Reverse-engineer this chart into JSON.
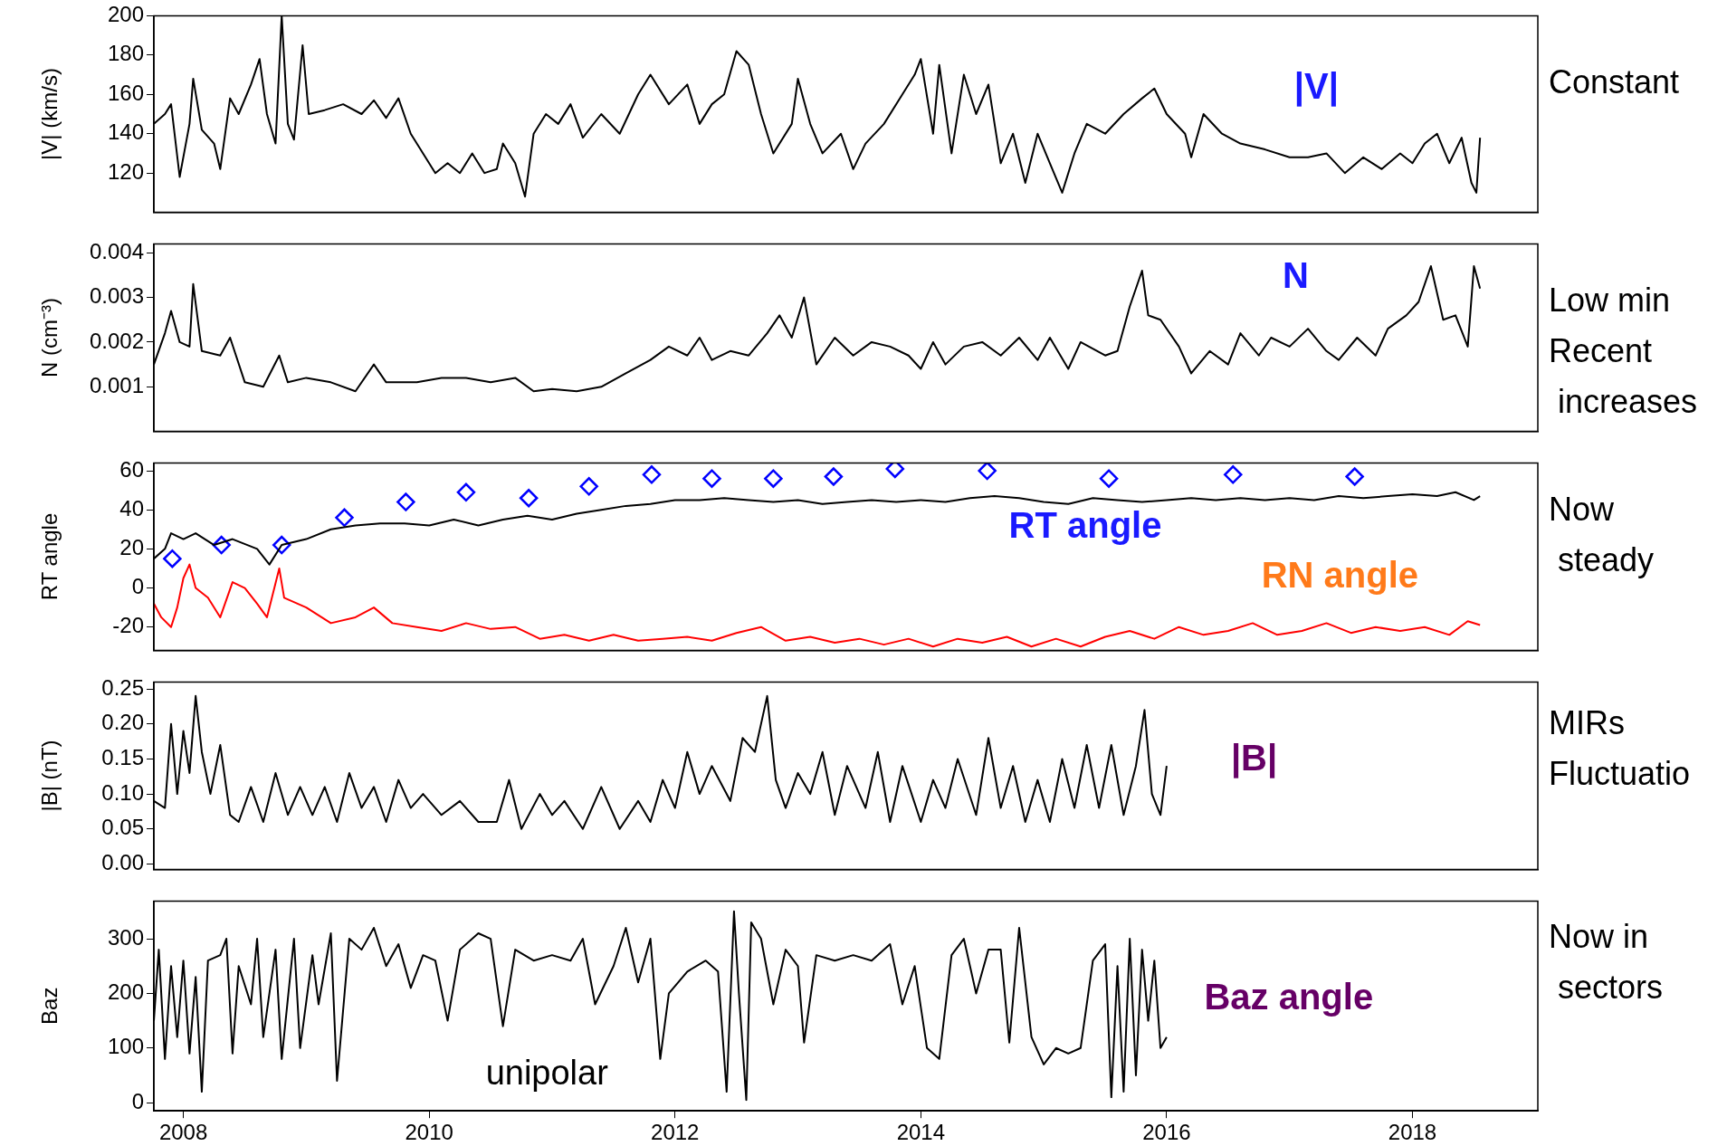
{
  "chart_data": [
    {
      "type": "line",
      "ylabel": "|V| (km/s)",
      "xlim": [
        2007.76,
        2019.02
      ],
      "ylim": [
        100,
        200
      ],
      "yticks": [
        120,
        140,
        160,
        180,
        200
      ],
      "tick_labels": "y",
      "grid": false,
      "legend": false,
      "marker": "none",
      "annotations": [
        "|V|",
        "Constant"
      ],
      "series": [
        {
          "color": "#000000",
          "x": [
            2007.76,
            2007.85,
            2007.9,
            2007.97,
            2008.05,
            2008.08,
            2008.15,
            2008.25,
            2008.3,
            2008.38,
            2008.45,
            2008.55,
            2008.62,
            2008.68,
            2008.75,
            2008.8,
            2008.85,
            2008.9,
            2008.97,
            2009.02,
            2009.15,
            2009.3,
            2009.45,
            2009.55,
            2009.65,
            2009.75,
            2009.85,
            2009.95,
            2010.05,
            2010.15,
            2010.25,
            2010.35,
            2010.45,
            2010.55,
            2010.6,
            2010.7,
            2010.78,
            2010.85,
            2010.95,
            2011.05,
            2011.15,
            2011.25,
            2011.4,
            2011.55,
            2011.7,
            2011.8,
            2011.95,
            2012.1,
            2012.2,
            2012.3,
            2012.4,
            2012.5,
            2012.6,
            2012.7,
            2012.8,
            2012.95,
            2013.0,
            2013.1,
            2013.2,
            2013.35,
            2013.45,
            2013.55,
            2013.7,
            2013.85,
            2013.95,
            2014.0,
            2014.1,
            2014.15,
            2014.25,
            2014.35,
            2014.45,
            2014.55,
            2014.65,
            2014.75,
            2014.85,
            2014.95,
            2015.05,
            2015.15,
            2015.25,
            2015.35,
            2015.5,
            2015.65,
            2015.8,
            2015.9,
            2016.0,
            2016.15,
            2016.2,
            2016.3,
            2016.45,
            2016.6,
            2016.8,
            2017.0,
            2017.15,
            2017.3,
            2017.45,
            2017.6,
            2017.75,
            2017.9,
            2018.0,
            2018.1,
            2018.2,
            2018.3,
            2018.4,
            2018.48,
            2018.52,
            2018.55
          ],
          "values": [
            145,
            150,
            155,
            118,
            145,
            168,
            142,
            135,
            122,
            158,
            150,
            165,
            178,
            150,
            135,
            200,
            145,
            137,
            185,
            150,
            152,
            155,
            150,
            157,
            148,
            158,
            140,
            130,
            120,
            125,
            120,
            130,
            120,
            122,
            135,
            125,
            108,
            140,
            150,
            145,
            155,
            138,
            150,
            140,
            160,
            170,
            155,
            165,
            145,
            155,
            160,
            182,
            175,
            150,
            130,
            145,
            168,
            145,
            130,
            140,
            122,
            135,
            145,
            160,
            170,
            178,
            140,
            175,
            130,
            170,
            150,
            165,
            125,
            140,
            115,
            140,
            125,
            110,
            130,
            145,
            140,
            150,
            158,
            163,
            150,
            140,
            128,
            150,
            140,
            135,
            132,
            128,
            128,
            130,
            120,
            128,
            122,
            130,
            125,
            135,
            140,
            125,
            138,
            115,
            110,
            138
          ]
        }
      ]
    },
    {
      "type": "line",
      "ylabel": "N (cm⁻³)",
      "xlim": [
        2007.76,
        2019.02
      ],
      "ylim": [
        0,
        0.0042
      ],
      "yticks": [
        0.001,
        0.002,
        0.003,
        0.004
      ],
      "tick_labels": "y",
      "grid": false,
      "legend": false,
      "marker": "none",
      "annotations": [
        "N",
        "Low min\nRecent\n increases"
      ],
      "series": [
        {
          "color": "#000000",
          "x": [
            2007.76,
            2007.85,
            2007.9,
            2007.97,
            2008.05,
            2008.08,
            2008.15,
            2008.3,
            2008.38,
            2008.5,
            2008.65,
            2008.78,
            2008.85,
            2009.0,
            2009.2,
            2009.4,
            2009.55,
            2009.65,
            2009.9,
            2010.1,
            2010.3,
            2010.5,
            2010.7,
            2010.85,
            2011.0,
            2011.2,
            2011.4,
            2011.6,
            2011.8,
            2011.95,
            2012.1,
            2012.2,
            2012.3,
            2012.45,
            2012.6,
            2012.75,
            2012.85,
            2012.95,
            2013.05,
            2013.15,
            2013.3,
            2013.45,
            2013.6,
            2013.75,
            2013.9,
            2014.0,
            2014.1,
            2014.2,
            2014.35,
            2014.5,
            2014.65,
            2014.8,
            2014.95,
            2015.05,
            2015.2,
            2015.3,
            2015.5,
            2015.6,
            2015.7,
            2015.8,
            2015.85,
            2015.95,
            2016.1,
            2016.2,
            2016.35,
            2016.5,
            2016.6,
            2016.75,
            2016.85,
            2017.0,
            2017.15,
            2017.3,
            2017.4,
            2017.55,
            2017.7,
            2017.8,
            2017.95,
            2018.05,
            2018.15,
            2018.25,
            2018.35,
            2018.45,
            2018.5,
            2018.55
          ],
          "values": [
            0.0015,
            0.0022,
            0.0027,
            0.002,
            0.0019,
            0.0033,
            0.0018,
            0.0017,
            0.0021,
            0.0011,
            0.001,
            0.0017,
            0.0011,
            0.0012,
            0.0011,
            0.0009,
            0.0015,
            0.0011,
            0.0011,
            0.0012,
            0.0012,
            0.0011,
            0.0012,
            0.0009,
            0.00095,
            0.0009,
            0.001,
            0.0013,
            0.0016,
            0.0019,
            0.0017,
            0.0021,
            0.0016,
            0.0018,
            0.0017,
            0.0022,
            0.0026,
            0.0021,
            0.003,
            0.0015,
            0.0021,
            0.0017,
            0.002,
            0.0019,
            0.0017,
            0.0014,
            0.002,
            0.0015,
            0.0019,
            0.002,
            0.0017,
            0.0021,
            0.0016,
            0.0021,
            0.0014,
            0.002,
            0.0017,
            0.0018,
            0.0028,
            0.0036,
            0.0026,
            0.0025,
            0.0019,
            0.0013,
            0.0018,
            0.0015,
            0.0022,
            0.0017,
            0.0021,
            0.0019,
            0.0023,
            0.0018,
            0.0016,
            0.0021,
            0.0017,
            0.0023,
            0.0026,
            0.0029,
            0.0037,
            0.0025,
            0.0026,
            0.0019,
            0.0037,
            0.0032
          ]
        }
      ]
    },
    {
      "type": "line",
      "ylabel": "RT angle",
      "xlim": [
        2007.76,
        2019.02
      ],
      "ylim": [
        -32,
        64
      ],
      "yticks": [
        -20,
        0,
        20,
        40,
        60
      ],
      "tick_labels": "y",
      "grid": false,
      "legend": false,
      "marker": "none",
      "annotations": [
        "RT angle",
        "RN angle",
        "Now\n steady"
      ],
      "series": [
        {
          "color": "#000000",
          "x": [
            2007.76,
            2007.85,
            2007.9,
            2008.0,
            2008.1,
            2008.25,
            2008.4,
            2008.6,
            2008.7,
            2008.8,
            2009.0,
            2009.2,
            2009.4,
            2009.6,
            2009.8,
            2010.0,
            2010.2,
            2010.4,
            2010.6,
            2010.8,
            2011.0,
            2011.2,
            2011.4,
            2011.6,
            2011.8,
            2012.0,
            2012.2,
            2012.4,
            2012.6,
            2012.8,
            2013.0,
            2013.2,
            2013.4,
            2013.6,
            2013.8,
            2014.0,
            2014.2,
            2014.4,
            2014.6,
            2014.8,
            2015.0,
            2015.2,
            2015.4,
            2015.6,
            2015.8,
            2016.0,
            2016.2,
            2016.4,
            2016.6,
            2016.8,
            2017.0,
            2017.2,
            2017.4,
            2017.6,
            2017.8,
            2018.0,
            2018.2,
            2018.35,
            2018.5,
            2018.55
          ],
          "values": [
            15,
            20,
            28,
            25,
            28,
            22,
            25,
            20,
            12,
            22,
            25,
            30,
            32,
            33,
            33,
            32,
            35,
            32,
            35,
            37,
            35,
            38,
            40,
            42,
            43,
            45,
            45,
            46,
            45,
            44,
            45,
            43,
            44,
            45,
            44,
            45,
            44,
            46,
            47,
            46,
            44,
            43,
            46,
            45,
            44,
            45,
            46,
            45,
            46,
            45,
            46,
            45,
            47,
            46,
            47,
            48,
            47,
            49,
            45,
            47
          ]
        },
        {
          "type": "scatter",
          "color": "#0000ff",
          "marker": "diamond",
          "x": [
            2007.91,
            2008.31,
            2008.8,
            2009.31,
            2009.81,
            2010.3,
            2010.81,
            2011.3,
            2011.81,
            2012.3,
            2012.8,
            2013.29,
            2013.79,
            2014.54,
            2015.53,
            2016.54,
            2017.53
          ],
          "values": [
            15,
            22,
            22,
            36,
            44,
            49,
            46,
            52,
            58,
            56,
            56,
            57,
            61,
            60,
            56,
            58,
            57
          ]
        },
        {
          "color": "#ff0000",
          "x": [
            2007.76,
            2007.82,
            2007.9,
            2007.95,
            2008.0,
            2008.05,
            2008.1,
            2008.2,
            2008.3,
            2008.4,
            2008.5,
            2008.6,
            2008.68,
            2008.78,
            2008.82,
            2009.0,
            2009.2,
            2009.4,
            2009.55,
            2009.7,
            2009.9,
            2010.1,
            2010.3,
            2010.5,
            2010.7,
            2010.9,
            2011.1,
            2011.3,
            2011.5,
            2011.7,
            2011.9,
            2012.1,
            2012.3,
            2012.5,
            2012.7,
            2012.9,
            2013.1,
            2013.3,
            2013.5,
            2013.7,
            2013.9,
            2014.1,
            2014.3,
            2014.5,
            2014.7,
            2014.9,
            2015.1,
            2015.3,
            2015.5,
            2015.7,
            2015.9,
            2016.1,
            2016.3,
            2016.5,
            2016.7,
            2016.9,
            2017.1,
            2017.3,
            2017.5,
            2017.7,
            2017.9,
            2018.1,
            2018.3,
            2018.45,
            2018.55
          ],
          "values": [
            -8,
            -15,
            -20,
            -10,
            5,
            12,
            0,
            -5,
            -15,
            3,
            0,
            -8,
            -15,
            10,
            -5,
            -10,
            -18,
            -15,
            -10,
            -18,
            -20,
            -22,
            -18,
            -21,
            -20,
            -26,
            -24,
            -27,
            -24,
            -27,
            -26,
            -25,
            -27,
            -23,
            -20,
            -27,
            -25,
            -28,
            -26,
            -29,
            -26,
            -30,
            -26,
            -28,
            -25,
            -30,
            -26,
            -30,
            -25,
            -22,
            -26,
            -20,
            -24,
            -22,
            -18,
            -24,
            -22,
            -18,
            -23,
            -20,
            -22,
            -20,
            -24,
            -17,
            -19
          ]
        }
      ]
    },
    {
      "type": "line",
      "ylabel": "|B| (nT)",
      "xlim": [
        2007.76,
        2019.02
      ],
      "ylim": [
        -0.008,
        0.26
      ],
      "yticks": [
        {
          "value": 0,
          "label": "0.00"
        },
        {
          "value": 0.05,
          "label": "0.05"
        },
        {
          "value": 0.1,
          "label": "0.10"
        },
        {
          "value": 0.15,
          "label": "0.15"
        },
        {
          "value": 0.2,
          "label": "0.20"
        },
        {
          "value": 0.25,
          "label": "0.25"
        }
      ],
      "tick_labels": "y",
      "grid": false,
      "legend": false,
      "marker": "none",
      "annotations": [
        "|B|",
        "MIRs\nFluctuatio"
      ],
      "series": [
        {
          "color": "#000000",
          "x": [
            2007.76,
            2007.85,
            2007.9,
            2007.95,
            2008.0,
            2008.05,
            2008.1,
            2008.15,
            2008.22,
            2008.3,
            2008.38,
            2008.45,
            2008.55,
            2008.65,
            2008.75,
            2008.85,
            2008.95,
            2009.05,
            2009.15,
            2009.25,
            2009.35,
            2009.45,
            2009.55,
            2009.65,
            2009.75,
            2009.85,
            2009.95,
            2010.1,
            2010.25,
            2010.4,
            2010.55,
            2010.65,
            2010.75,
            2010.9,
            2011.0,
            2011.1,
            2011.25,
            2011.4,
            2011.55,
            2011.7,
            2011.8,
            2011.9,
            2012.0,
            2012.1,
            2012.2,
            2012.3,
            2012.45,
            2012.55,
            2012.65,
            2012.75,
            2012.82,
            2012.9,
            2013.0,
            2013.1,
            2013.2,
            2013.3,
            2013.4,
            2013.55,
            2013.65,
            2013.75,
            2013.85,
            2014.0,
            2014.1,
            2014.2,
            2014.3,
            2014.45,
            2014.55,
            2014.65,
            2014.75,
            2014.85,
            2014.95,
            2015.05,
            2015.15,
            2015.25,
            2015.35,
            2015.45,
            2015.55,
            2015.65,
            2015.75,
            2015.82,
            2015.88,
            2015.95,
            2016.0
          ],
          "values": [
            0.09,
            0.08,
            0.2,
            0.1,
            0.19,
            0.13,
            0.24,
            0.16,
            0.1,
            0.17,
            0.07,
            0.06,
            0.11,
            0.06,
            0.13,
            0.07,
            0.11,
            0.07,
            0.11,
            0.06,
            0.13,
            0.08,
            0.11,
            0.06,
            0.12,
            0.08,
            0.1,
            0.07,
            0.09,
            0.06,
            0.06,
            0.12,
            0.05,
            0.1,
            0.07,
            0.09,
            0.05,
            0.11,
            0.05,
            0.09,
            0.06,
            0.12,
            0.08,
            0.16,
            0.1,
            0.14,
            0.09,
            0.18,
            0.16,
            0.24,
            0.12,
            0.08,
            0.13,
            0.1,
            0.16,
            0.07,
            0.14,
            0.08,
            0.16,
            0.06,
            0.14,
            0.06,
            0.12,
            0.08,
            0.15,
            0.07,
            0.18,
            0.08,
            0.14,
            0.06,
            0.12,
            0.06,
            0.15,
            0.08,
            0.17,
            0.08,
            0.17,
            0.07,
            0.14,
            0.22,
            0.1,
            0.07,
            0.14
          ]
        }
      ]
    },
    {
      "type": "line",
      "ylabel": "Baz",
      "xlim": [
        2007.76,
        2019.02
      ],
      "ylim": [
        -15,
        369
      ],
      "yticks": [
        0,
        100,
        200,
        300
      ],
      "xticks": [
        2008,
        2010,
        2012,
        2014,
        2016,
        2018
      ],
      "grid": false,
      "legend": false,
      "marker": "none",
      "annotations": [
        "Baz angle",
        "unipolar",
        "Now in\n sectors"
      ],
      "series": [
        {
          "color": "#000000",
          "x": [
            2007.76,
            2007.8,
            2007.85,
            2007.9,
            2007.95,
            2008.0,
            2008.05,
            2008.1,
            2008.15,
            2008.2,
            2008.3,
            2008.35,
            2008.4,
            2008.45,
            2008.55,
            2008.6,
            2008.65,
            2008.75,
            2008.8,
            2008.9,
            2008.95,
            2009.05,
            2009.1,
            2009.2,
            2009.25,
            2009.35,
            2009.45,
            2009.55,
            2009.65,
            2009.75,
            2009.85,
            2009.95,
            2010.05,
            2010.15,
            2010.25,
            2010.4,
            2010.5,
            2010.6,
            2010.7,
            2010.85,
            2011.0,
            2011.15,
            2011.25,
            2011.35,
            2011.5,
            2011.6,
            2011.7,
            2011.8,
            2011.88,
            2011.95,
            2012.1,
            2012.25,
            2012.35,
            2012.42,
            2012.48,
            2012.52,
            2012.58,
            2012.62,
            2012.7,
            2012.8,
            2012.9,
            2013.0,
            2013.05,
            2013.15,
            2013.3,
            2013.45,
            2013.6,
            2013.75,
            2013.85,
            2013.95,
            2014.05,
            2014.15,
            2014.25,
            2014.35,
            2014.45,
            2014.55,
            2014.65,
            2014.72,
            2014.8,
            2014.9,
            2015.0,
            2015.1,
            2015.2,
            2015.3,
            2015.4,
            2015.5,
            2015.55,
            2015.6,
            2015.65,
            2015.7,
            2015.75,
            2015.8,
            2015.85,
            2015.9,
            2015.95,
            2016.0
          ],
          "values": [
            150,
            280,
            80,
            250,
            120,
            260,
            90,
            230,
            20,
            260,
            270,
            300,
            90,
            250,
            180,
            300,
            120,
            280,
            80,
            300,
            100,
            270,
            180,
            310,
            40,
            300,
            280,
            320,
            250,
            290,
            210,
            270,
            260,
            150,
            280,
            310,
            300,
            140,
            280,
            260,
            270,
            260,
            300,
            180,
            250,
            320,
            220,
            300,
            80,
            200,
            240,
            260,
            240,
            20,
            350,
            200,
            5,
            330,
            300,
            180,
            280,
            250,
            110,
            270,
            260,
            270,
            260,
            290,
            180,
            250,
            100,
            80,
            270,
            300,
            200,
            280,
            280,
            110,
            320,
            120,
            70,
            100,
            90,
            100,
            260,
            290,
            10,
            250,
            20,
            300,
            50,
            280,
            150,
            260,
            100,
            120
          ]
        }
      ]
    }
  ]
}
